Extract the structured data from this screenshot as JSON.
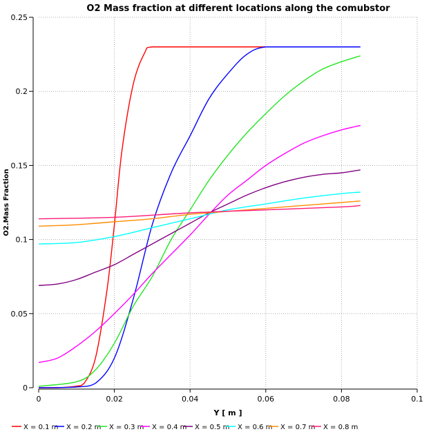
{
  "chart_data": {
    "type": "line",
    "title": "O2 Mass fraction at different locations along the comubstor",
    "xlabel": "Y [ m ]",
    "ylabel": "O2.Mass Fraction",
    "xlim": [
      0,
      0.1
    ],
    "ylim": [
      0,
      0.25
    ],
    "xticks": [
      "0",
      "0.02",
      "0.04",
      "0.06",
      "0.08",
      "0.1"
    ],
    "xtick_values": [
      0,
      0.02,
      0.04,
      0.06,
      0.08,
      0.1
    ],
    "yticks": [
      "0",
      "0.05",
      "0.1",
      "0.15",
      "0.2",
      "0.25"
    ],
    "ytick_values": [
      0,
      0.05,
      0.1,
      0.15,
      0.2,
      0.25
    ],
    "grid": true,
    "legend_position": "bottom",
    "series": [
      {
        "name": "X = 0.1 m",
        "color": "#ff0000",
        "x": [
          0,
          0.005,
          0.01,
          0.012,
          0.015,
          0.018,
          0.02,
          0.022,
          0.025,
          0.028,
          0.03,
          0.04,
          0.05,
          0.06
        ],
        "y": [
          0,
          0,
          0.001,
          0.003,
          0.02,
          0.065,
          0.11,
          0.16,
          0.205,
          0.226,
          0.23,
          0.23,
          0.23,
          0.23
        ]
      },
      {
        "name": "X = 0.2 m",
        "color": "#0000ff",
        "x": [
          0,
          0.01,
          0.015,
          0.02,
          0.025,
          0.03,
          0.035,
          0.04,
          0.045,
          0.05,
          0.055,
          0.06,
          0.07,
          0.085
        ],
        "y": [
          0,
          0.0005,
          0.003,
          0.02,
          0.06,
          0.11,
          0.145,
          0.17,
          0.195,
          0.212,
          0.225,
          0.23,
          0.23,
          0.23
        ]
      },
      {
        "name": "X = 0.3 m",
        "color": "#22e622",
        "x": [
          0,
          0.01,
          0.015,
          0.02,
          0.025,
          0.03,
          0.035,
          0.04,
          0.045,
          0.05,
          0.055,
          0.06,
          0.065,
          0.07,
          0.075,
          0.08,
          0.085
        ],
        "y": [
          0.001,
          0.004,
          0.012,
          0.03,
          0.055,
          0.075,
          0.1,
          0.12,
          0.14,
          0.157,
          0.172,
          0.185,
          0.197,
          0.207,
          0.215,
          0.22,
          0.224
        ]
      },
      {
        "name": "X = 0.4 m",
        "color": "#ff00ff",
        "x": [
          0,
          0.005,
          0.01,
          0.015,
          0.02,
          0.025,
          0.03,
          0.035,
          0.04,
          0.045,
          0.05,
          0.055,
          0.06,
          0.065,
          0.07,
          0.075,
          0.08,
          0.085
        ],
        "y": [
          0.017,
          0.02,
          0.028,
          0.038,
          0.05,
          0.063,
          0.077,
          0.09,
          0.103,
          0.117,
          0.13,
          0.14,
          0.15,
          0.158,
          0.165,
          0.17,
          0.174,
          0.177
        ]
      },
      {
        "name": "X = 0.5 m",
        "color": "#800080",
        "x": [
          0,
          0.005,
          0.01,
          0.015,
          0.02,
          0.025,
          0.03,
          0.035,
          0.04,
          0.045,
          0.05,
          0.055,
          0.06,
          0.065,
          0.07,
          0.075,
          0.08,
          0.085
        ],
        "y": [
          0.069,
          0.07,
          0.073,
          0.078,
          0.083,
          0.09,
          0.097,
          0.104,
          0.111,
          0.118,
          0.124,
          0.13,
          0.135,
          0.139,
          0.142,
          0.144,
          0.145,
          0.147
        ]
      },
      {
        "name": "X = 0.6 m",
        "color": "#00ffff",
        "x": [
          0,
          0.01,
          0.02,
          0.03,
          0.04,
          0.05,
          0.06,
          0.07,
          0.08,
          0.085
        ],
        "y": [
          0.097,
          0.098,
          0.102,
          0.108,
          0.114,
          0.12,
          0.124,
          0.128,
          0.131,
          0.132
        ]
      },
      {
        "name": "X = 0.7 m",
        "color": "#ff8c00",
        "x": [
          0,
          0.01,
          0.02,
          0.03,
          0.04,
          0.05,
          0.06,
          0.07,
          0.08,
          0.085
        ],
        "y": [
          0.109,
          0.11,
          0.112,
          0.114,
          0.117,
          0.119,
          0.121,
          0.123,
          0.125,
          0.126
        ]
      },
      {
        "name": "X = 0.8 m",
        "color": "#ff1a75",
        "x": [
          0,
          0.02,
          0.04,
          0.06,
          0.08,
          0.085
        ],
        "y": [
          0.114,
          0.115,
          0.118,
          0.12,
          0.122,
          0.123
        ]
      }
    ]
  }
}
